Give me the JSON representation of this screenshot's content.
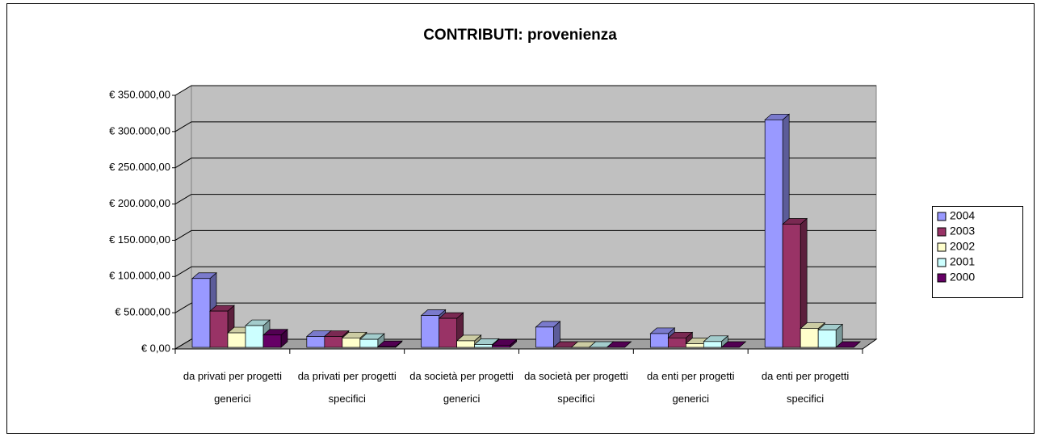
{
  "chart_data": {
    "type": "bar3d",
    "title": "CONTRIBUTI: provenienza",
    "categories": [
      "da privati per progetti generici",
      "da privati per progetti specifici",
      "da società per progetti generici",
      "da società per progetti specifici",
      "da enti per progetti generici",
      "da enti per progetti specifici"
    ],
    "series": [
      {
        "name": "2004",
        "color": "#9999ff",
        "values": [
          95000,
          15000,
          44000,
          28000,
          19000,
          314000
        ]
      },
      {
        "name": "2003",
        "color": "#993366",
        "values": [
          50000,
          15000,
          40000,
          0,
          13000,
          170000
        ]
      },
      {
        "name": "2002",
        "color": "#ffffcc",
        "values": [
          20000,
          13000,
          9000,
          0,
          5000,
          26000
        ]
      },
      {
        "name": "2001",
        "color": "#ccffff",
        "values": [
          30000,
          11000,
          4000,
          0,
          8000,
          24000
        ]
      },
      {
        "name": "2000",
        "color": "#660066",
        "values": [
          17000,
          1000,
          3000,
          0,
          0,
          0
        ]
      }
    ],
    "ylim": [
      0,
      350000
    ],
    "yticks": [
      {
        "value": 0,
        "label": "€ 0,00"
      },
      {
        "value": 50000,
        "label": "€ 50.000,00"
      },
      {
        "value": 100000,
        "label": "€ 100.000,00"
      },
      {
        "value": 150000,
        "label": "€ 150.000,00"
      },
      {
        "value": 200000,
        "label": "€ 200.000,00"
      },
      {
        "value": 250000,
        "label": "€ 250.000,00"
      },
      {
        "value": 300000,
        "label": "€ 300.000,00"
      },
      {
        "value": 350000,
        "label": "€ 350.000,00"
      }
    ],
    "grid": true,
    "legend": "right"
  }
}
